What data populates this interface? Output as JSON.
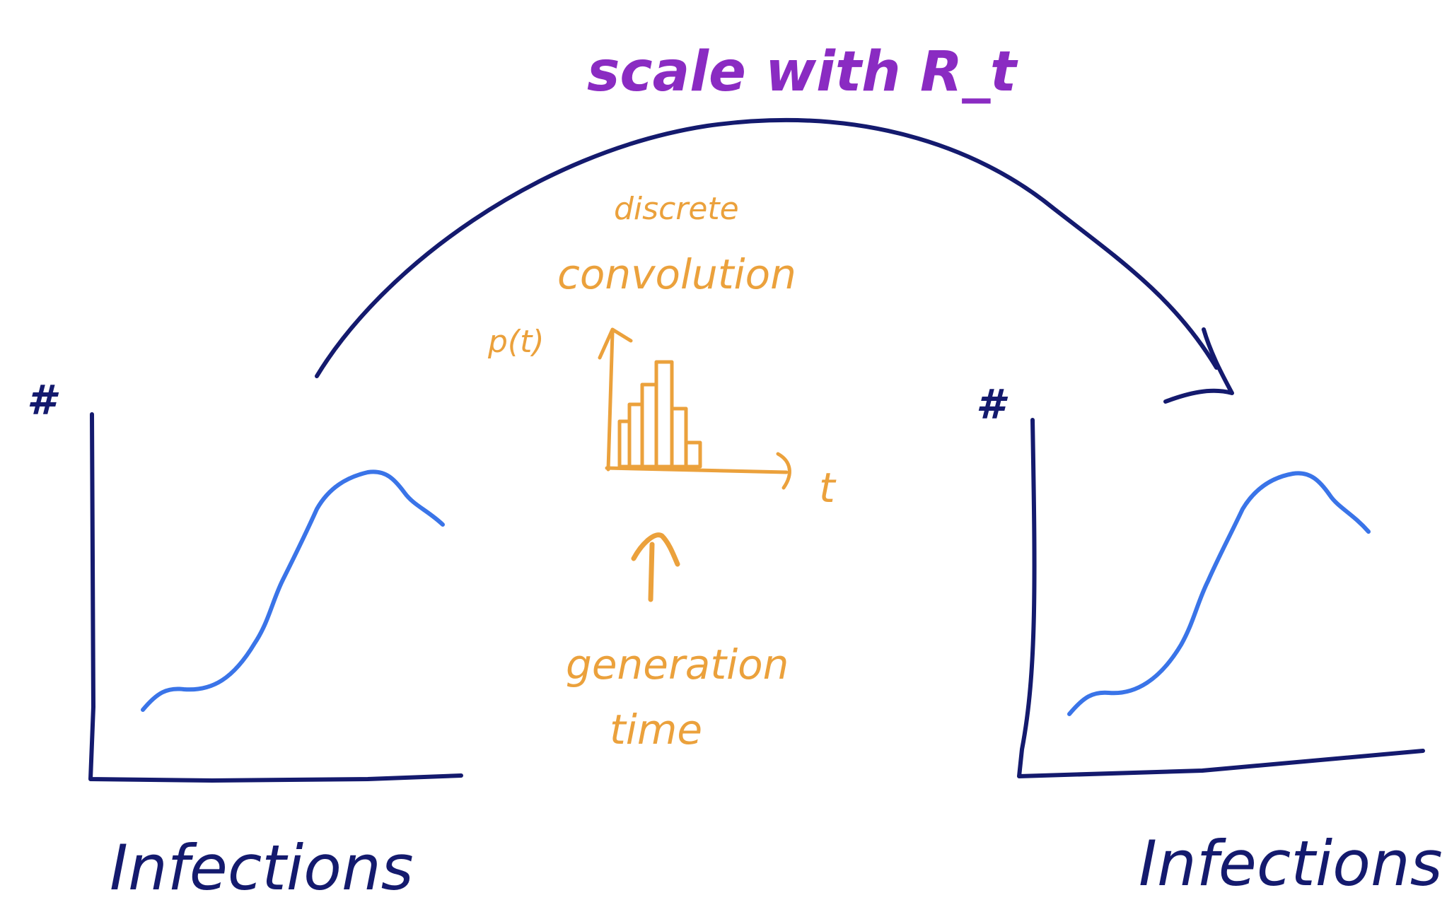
{
  "title": "scale with R_t",
  "left_panel": {
    "y_axis_label": "#",
    "caption": "Infections"
  },
  "right_panel": {
    "y_axis_label": "#",
    "caption": "Infections"
  },
  "kernel": {
    "discrete_label": "discrete",
    "convolution_label": "convolution",
    "y_axis_label": "p(t)",
    "x_axis_label": "t",
    "source_line1": "generation",
    "source_line2": "time"
  },
  "colors": {
    "axes": "#141a6e",
    "curve": "#3a74e8",
    "title": "#8a2bc2",
    "kernel": "#eba13c"
  }
}
